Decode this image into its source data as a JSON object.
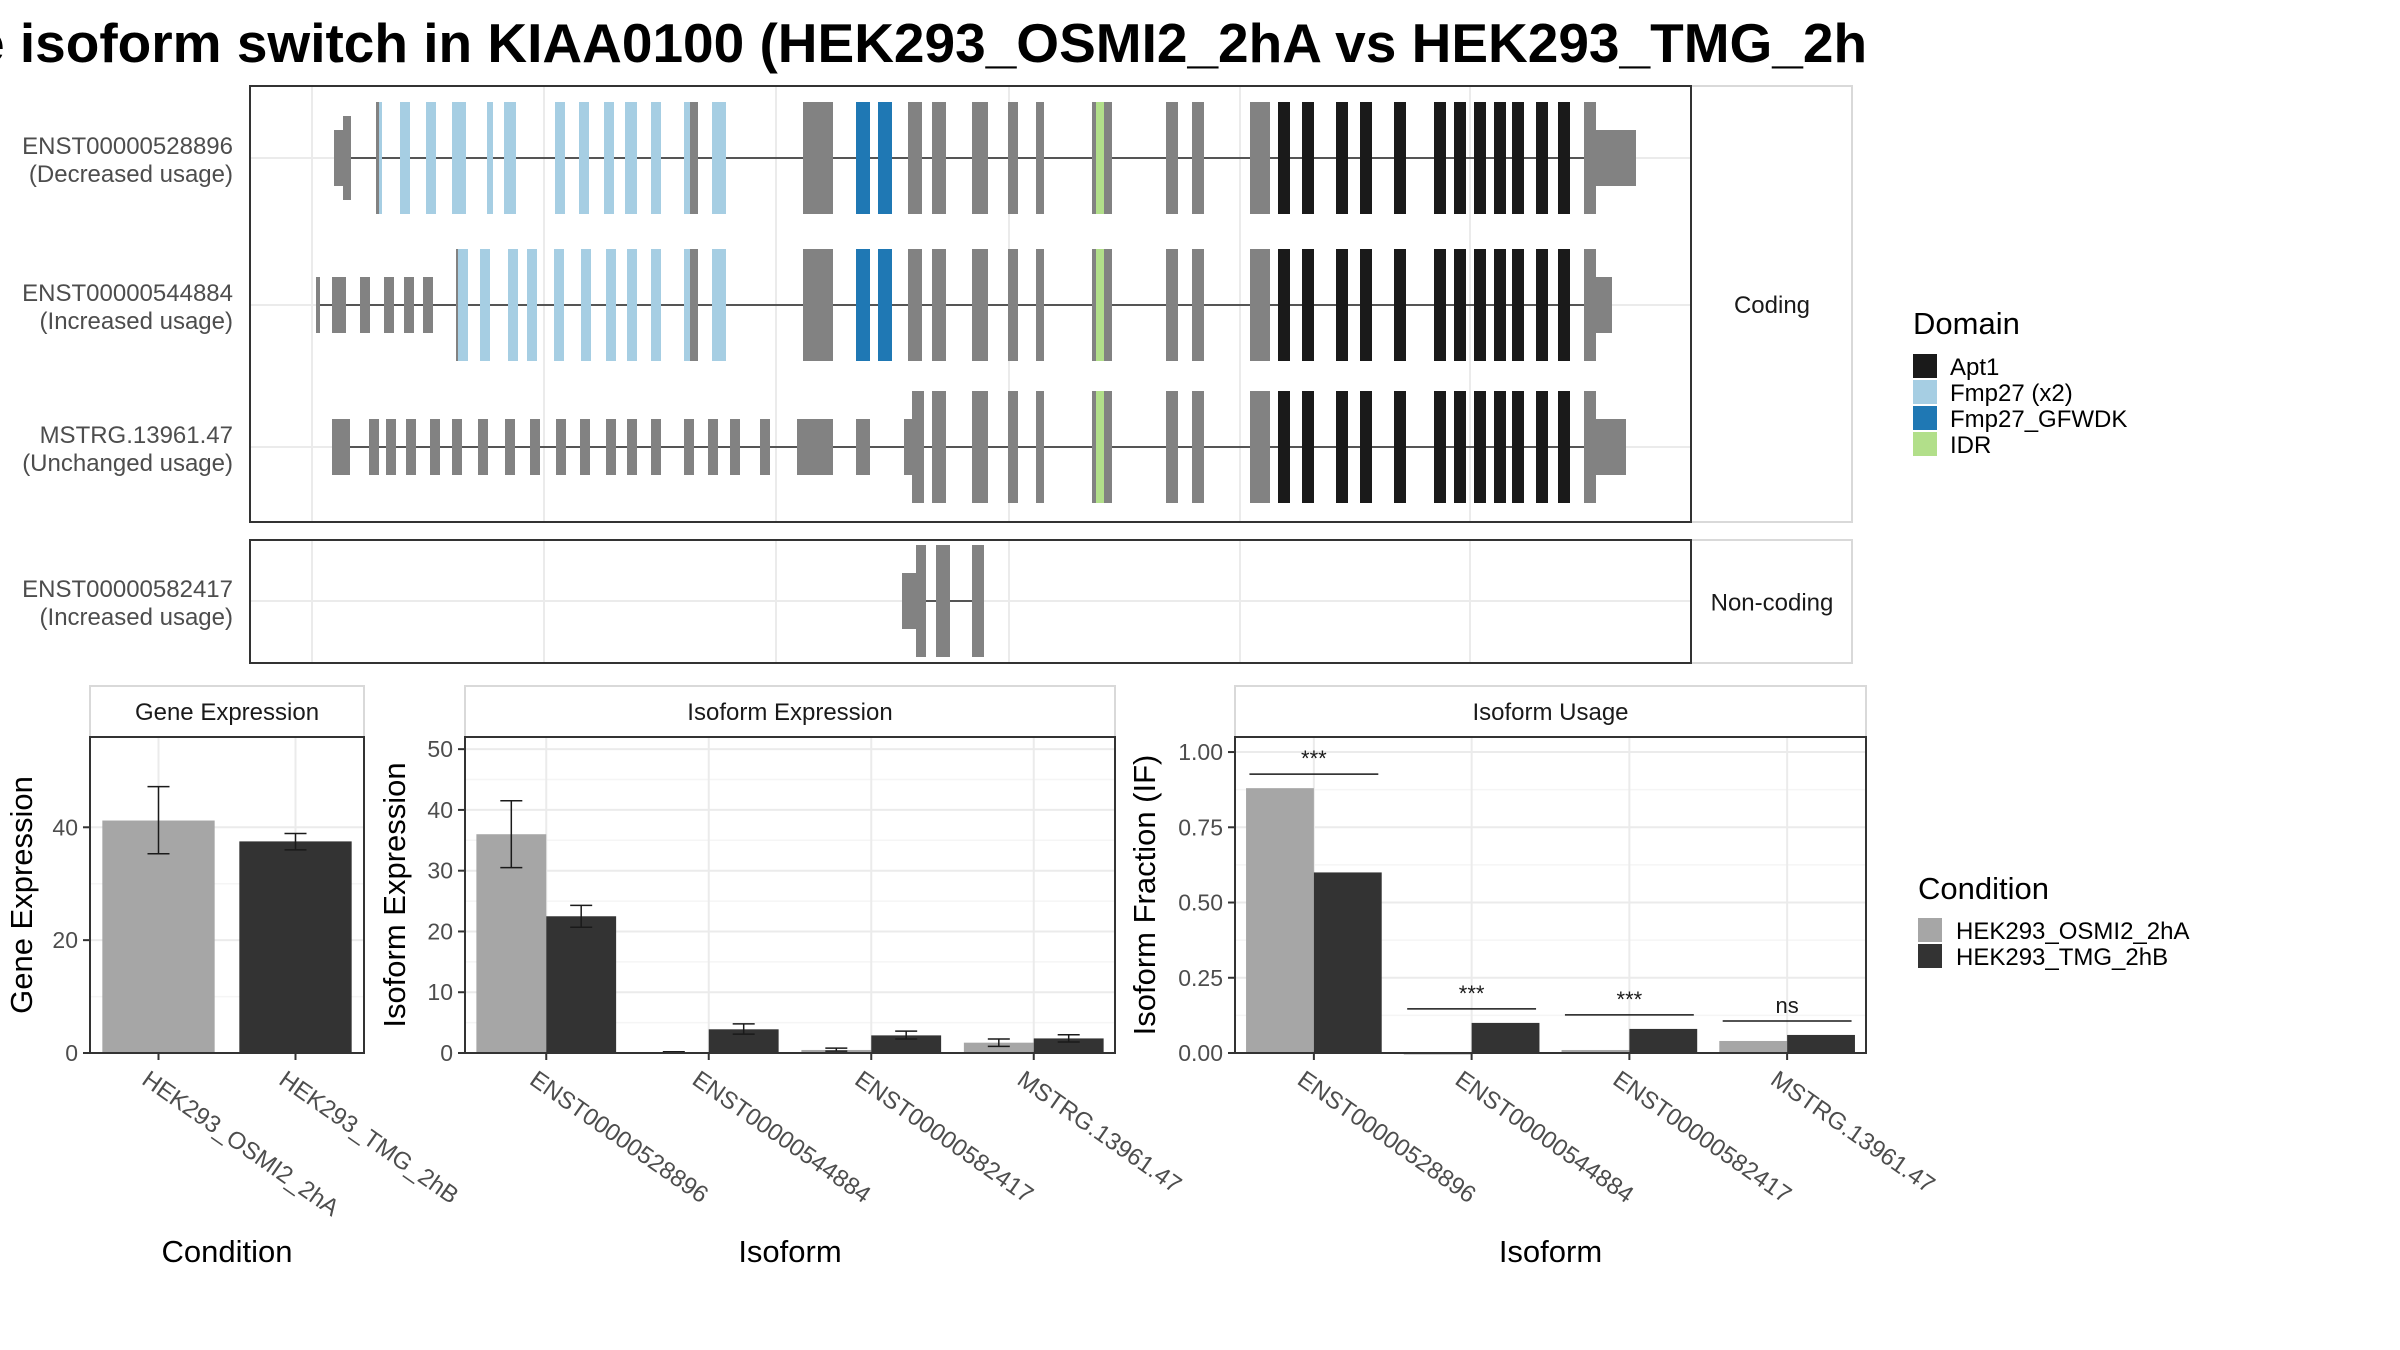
{
  "title": "e isoform switch in KIAA0100 (HEK293_OSMI2_2hA vs HEK293_TMG_2h",
  "colors": {
    "condition_a": "#a6a6a6",
    "condition_b": "#333333",
    "exon": "#828282",
    "Apt1": "#1a1a1a",
    "Fmp27 (x2)": "#a6cee3",
    "Fmp27_GFWDK": "#1f78b4",
    "IDR": "#b2df8a"
  },
  "isoform_structure": {
    "facets": [
      "Coding",
      "Non-coding"
    ],
    "tracks": [
      {
        "id": "ENST00000528896",
        "usage": "(Decreased usage)",
        "facet": "Coding"
      },
      {
        "id": "ENST00000544884",
        "usage": "(Increased usage)",
        "facet": "Coding"
      },
      {
        "id": "MSTRG.13961.47",
        "usage": "(Unchanged usage)",
        "facet": "Coding"
      },
      {
        "id": "ENST00000582417",
        "usage": "(Increased usage)",
        "facet": "Non-coding"
      }
    ]
  },
  "legends": {
    "domain": {
      "title": "Domain",
      "items": [
        "Apt1",
        "Fmp27 (x2)",
        "Fmp27_GFWDK",
        "IDR"
      ]
    },
    "condition": {
      "title": "Condition",
      "items": [
        "HEK293_OSMI2_2hA",
        "HEK293_TMG_2hB"
      ]
    }
  },
  "chart_data": [
    {
      "type": "bar",
      "title": "Gene Expression",
      "xlabel": "Condition",
      "ylabel": "Gene Expression",
      "ylim": [
        0,
        56
      ],
      "yticks": [
        0,
        20,
        40
      ],
      "categories": [
        "HEK293_OSMI2_2hA",
        "HEK293_TMG_2hB"
      ],
      "series": [
        {
          "name": "HEK293_OSMI2_2hA",
          "values": [
            41.2,
            null
          ],
          "err_low": [
            35.3,
            null
          ],
          "err_high": [
            47.2,
            null
          ]
        },
        {
          "name": "HEK293_TMG_2hB",
          "values": [
            null,
            37.5
          ],
          "err_low": [
            null,
            36.0
          ],
          "err_high": [
            null,
            38.9
          ]
        }
      ]
    },
    {
      "type": "bar",
      "title": "Isoform Expression",
      "xlabel": "Isoform",
      "ylabel": "Isoform Expression",
      "ylim": [
        0,
        52
      ],
      "yticks": [
        0,
        10,
        20,
        30,
        40,
        50
      ],
      "categories": [
        "ENST00000528896",
        "ENST00000544884",
        "ENST00000582417",
        "MSTRG.13961.47"
      ],
      "series": [
        {
          "name": "HEK293_OSMI2_2hA",
          "values": [
            36.0,
            0.1,
            0.5,
            1.7
          ],
          "err_low": [
            30.5,
            0.0,
            0.3,
            1.1
          ],
          "err_high": [
            41.5,
            0.2,
            0.8,
            2.3
          ]
        },
        {
          "name": "HEK293_TMG_2hB",
          "values": [
            22.5,
            3.9,
            2.9,
            2.4
          ],
          "err_low": [
            20.7,
            3.1,
            2.3,
            1.8
          ],
          "err_high": [
            24.3,
            4.8,
            3.6,
            3.0
          ]
        }
      ]
    },
    {
      "type": "bar",
      "title": "Isoform Usage",
      "xlabel": "Isoform",
      "ylabel": "Isoform Fraction (IF)",
      "ylim": [
        0,
        1.05
      ],
      "yticks": [
        "0.00",
        "0.25",
        "0.50",
        "0.75",
        "1.00"
      ],
      "categories": [
        "ENST00000528896",
        "ENST00000544884",
        "ENST00000582417",
        "MSTRG.13961.47"
      ],
      "series": [
        {
          "name": "HEK293_OSMI2_2hA",
          "values": [
            0.88,
            0.0,
            0.01,
            0.04
          ]
        },
        {
          "name": "HEK293_TMG_2hB",
          "values": [
            0.6,
            0.1,
            0.08,
            0.06
          ]
        }
      ],
      "significance": [
        "***",
        "***",
        "***",
        "ns"
      ]
    }
  ]
}
